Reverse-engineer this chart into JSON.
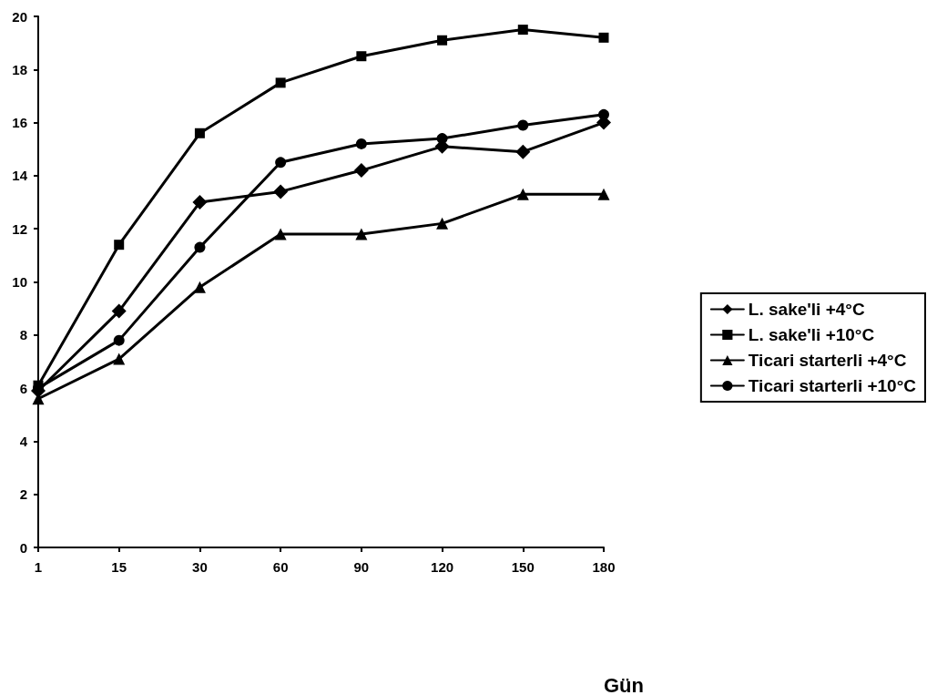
{
  "chart_data": {
    "type": "line",
    "xlabel": "Gün",
    "categories": [
      "1",
      "15",
      "30",
      "60",
      "90",
      "120",
      "150",
      "180"
    ],
    "series": [
      {
        "name": "L. sake'li +4°C",
        "color": "#000000",
        "marker": "diamond",
        "values": [
          5.9,
          8.9,
          13.0,
          13.4,
          14.2,
          15.1,
          14.9,
          16.0
        ]
      },
      {
        "name": "L. sake'li +10°C",
        "color": "#000000",
        "marker": "square",
        "values": [
          6.1,
          11.4,
          15.6,
          17.5,
          18.5,
          19.1,
          19.5,
          19.2
        ]
      },
      {
        "name": "Ticari starterli +4°C",
        "color": "#000000",
        "marker": "triangle",
        "values": [
          5.6,
          7.1,
          9.8,
          11.8,
          11.8,
          12.2,
          13.3,
          13.3
        ]
      },
      {
        "name": "Ticari starterli +10°C",
        "color": "#000000",
        "marker": "circle",
        "values": [
          6.0,
          7.8,
          11.3,
          14.5,
          15.2,
          15.4,
          15.9,
          16.3
        ]
      }
    ],
    "ylim": [
      0,
      20
    ],
    "yticks": [
      0,
      2,
      4,
      6,
      8,
      10,
      12,
      14,
      16,
      18,
      20
    ],
    "grid": false,
    "legend": "right",
    "line_style": "solid"
  }
}
